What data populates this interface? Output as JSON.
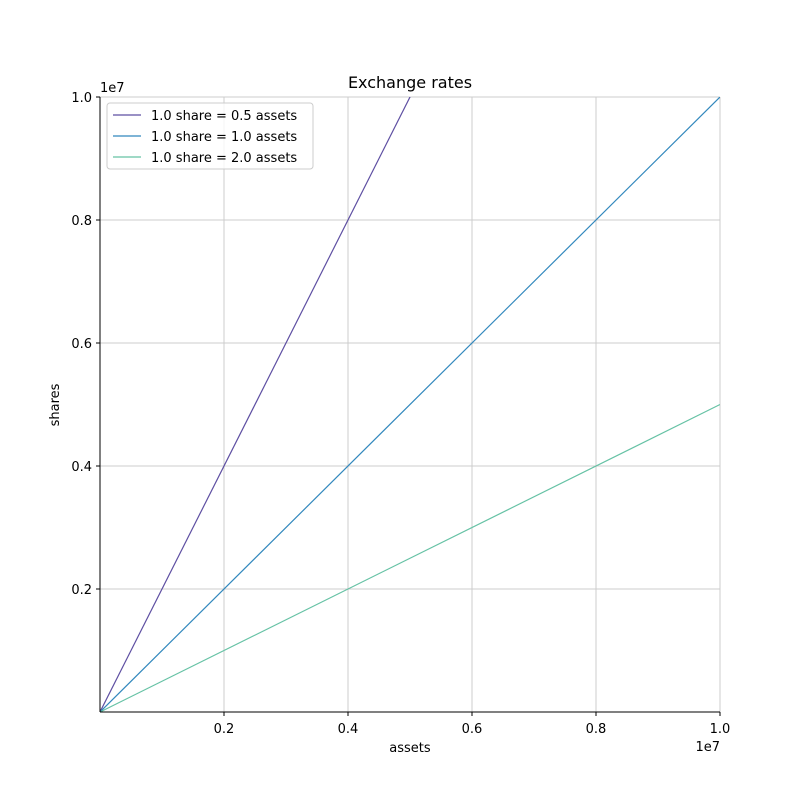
{
  "chart_data": {
    "type": "line",
    "title": "Exchange rates",
    "xlabel": "assets",
    "ylabel": "shares",
    "x_offset_label": "1e7",
    "y_offset_label": "1e7",
    "xlim": [
      0,
      10000000
    ],
    "ylim": [
      0,
      10000000
    ],
    "xticks": [
      0.2,
      0.4,
      0.6,
      0.8,
      1.0
    ],
    "yticks": [
      0.2,
      0.4,
      0.6,
      0.8,
      1.0
    ],
    "xtick_labels": [
      "0.2",
      "0.4",
      "0.6",
      "0.8",
      "1.0"
    ],
    "ytick_labels": [
      "0.2",
      "0.4",
      "0.6",
      "0.8",
      "1.0"
    ],
    "grid": true,
    "legend_position": "top-left",
    "series": [
      {
        "name": "1.0 share = 0.5 assets",
        "color": "#5e4fa2",
        "x": [
          0,
          10000000
        ],
        "y": [
          0,
          20000000
        ]
      },
      {
        "name": "1.0 share = 1.0 assets",
        "color": "#3288bd",
        "x": [
          0,
          10000000
        ],
        "y": [
          0,
          10000000
        ]
      },
      {
        "name": "1.0 share = 2.0 assets",
        "color": "#66c2a5",
        "x": [
          0,
          10000000
        ],
        "y": [
          0,
          5000000
        ]
      }
    ]
  }
}
